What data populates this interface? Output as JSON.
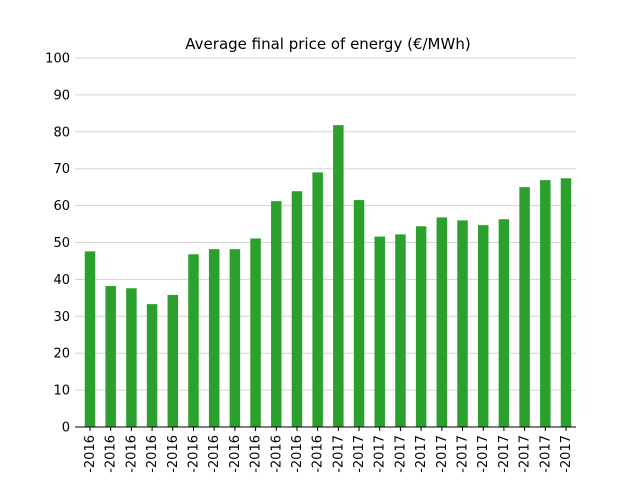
{
  "chart_data": {
    "type": "bar",
    "title": "Average final price of energy (€/MWh)",
    "xlabel": "",
    "ylabel": "",
    "ylim": [
      0,
      100
    ],
    "yticks": [
      0,
      10,
      20,
      30,
      40,
      50,
      60,
      70,
      80,
      90,
      100
    ],
    "grid": true,
    "bar_color": "#2ca02c",
    "categories": [
      "-2016",
      "-2016",
      "-2016",
      "-2016",
      "-2016",
      "-2016",
      "-2016",
      "-2016",
      "-2016",
      "-2016",
      "-2016",
      "-2016",
      "-2017",
      "-2017",
      "-2017",
      "-2017",
      "-2017",
      "-2017",
      "-2017",
      "-2017",
      "-2017",
      "-2017",
      "-2017",
      "-2017"
    ],
    "values": [
      47.6,
      38.2,
      37.6,
      33.3,
      35.8,
      46.8,
      48.2,
      48.2,
      51.1,
      61.2,
      63.9,
      69.0,
      81.8,
      61.5,
      51.6,
      52.2,
      54.4,
      56.8,
      56.0,
      54.7,
      56.3,
      65.0,
      66.9,
      67.4
    ]
  }
}
